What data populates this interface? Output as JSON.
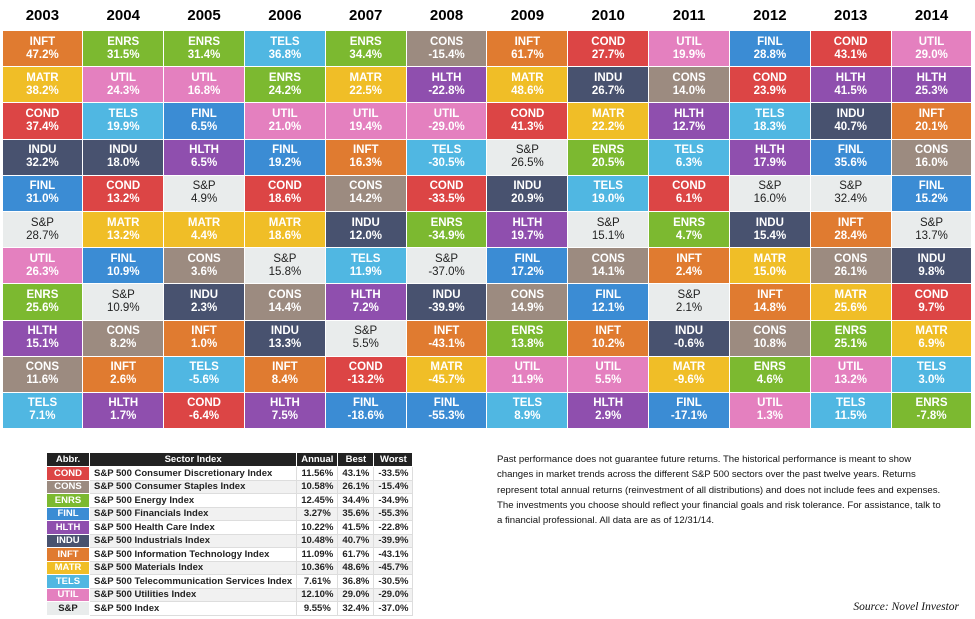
{
  "chart_data": {
    "type": "table",
    "years": [
      "2003",
      "2004",
      "2005",
      "2006",
      "2007",
      "2008",
      "2009",
      "2010",
      "2011",
      "2012",
      "2013",
      "2014"
    ],
    "columns": [
      [
        [
          "INFT",
          "47.2%"
        ],
        [
          "MATR",
          "38.2%"
        ],
        [
          "COND",
          "37.4%"
        ],
        [
          "INDU",
          "32.2%"
        ],
        [
          "FINL",
          "31.0%"
        ],
        [
          "S&P",
          "28.7%"
        ],
        [
          "UTIL",
          "26.3%"
        ],
        [
          "ENRS",
          "25.6%"
        ],
        [
          "HLTH",
          "15.1%"
        ],
        [
          "CONS",
          "11.6%"
        ],
        [
          "TELS",
          "7.1%"
        ]
      ],
      [
        [
          "ENRS",
          "31.5%"
        ],
        [
          "UTIL",
          "24.3%"
        ],
        [
          "TELS",
          "19.9%"
        ],
        [
          "INDU",
          "18.0%"
        ],
        [
          "COND",
          "13.2%"
        ],
        [
          "MATR",
          "13.2%"
        ],
        [
          "FINL",
          "10.9%"
        ],
        [
          "S&P",
          "10.9%"
        ],
        [
          "CONS",
          "8.2%"
        ],
        [
          "INFT",
          "2.6%"
        ],
        [
          "HLTH",
          "1.7%"
        ]
      ],
      [
        [
          "ENRS",
          "31.4%"
        ],
        [
          "UTIL",
          "16.8%"
        ],
        [
          "FINL",
          "6.5%"
        ],
        [
          "HLTH",
          "6.5%"
        ],
        [
          "S&P",
          "4.9%"
        ],
        [
          "MATR",
          "4.4%"
        ],
        [
          "CONS",
          "3.6%"
        ],
        [
          "INDU",
          "2.3%"
        ],
        [
          "INFT",
          "1.0%"
        ],
        [
          "TELS",
          "-5.6%"
        ],
        [
          "COND",
          "-6.4%"
        ]
      ],
      [
        [
          "TELS",
          "36.8%"
        ],
        [
          "ENRS",
          "24.2%"
        ],
        [
          "UTIL",
          "21.0%"
        ],
        [
          "FINL",
          "19.2%"
        ],
        [
          "COND",
          "18.6%"
        ],
        [
          "MATR",
          "18.6%"
        ],
        [
          "S&P",
          "15.8%"
        ],
        [
          "CONS",
          "14.4%"
        ],
        [
          "INDU",
          "13.3%"
        ],
        [
          "INFT",
          "8.4%"
        ],
        [
          "HLTH",
          "7.5%"
        ]
      ],
      [
        [
          "ENRS",
          "34.4%"
        ],
        [
          "MATR",
          "22.5%"
        ],
        [
          "UTIL",
          "19.4%"
        ],
        [
          "INFT",
          "16.3%"
        ],
        [
          "CONS",
          "14.2%"
        ],
        [
          "INDU",
          "12.0%"
        ],
        [
          "TELS",
          "11.9%"
        ],
        [
          "HLTH",
          "7.2%"
        ],
        [
          "S&P",
          "5.5%"
        ],
        [
          "COND",
          "-13.2%"
        ],
        [
          "FINL",
          "-18.6%"
        ]
      ],
      [
        [
          "CONS",
          "-15.4%"
        ],
        [
          "HLTH",
          "-22.8%"
        ],
        [
          "UTIL",
          "-29.0%"
        ],
        [
          "TELS",
          "-30.5%"
        ],
        [
          "COND",
          "-33.5%"
        ],
        [
          "ENRS",
          "-34.9%"
        ],
        [
          "S&P",
          "-37.0%"
        ],
        [
          "INDU",
          "-39.9%"
        ],
        [
          "INFT",
          "-43.1%"
        ],
        [
          "MATR",
          "-45.7%"
        ],
        [
          "FINL",
          "-55.3%"
        ]
      ],
      [
        [
          "INFT",
          "61.7%"
        ],
        [
          "MATR",
          "48.6%"
        ],
        [
          "COND",
          "41.3%"
        ],
        [
          "S&P",
          "26.5%"
        ],
        [
          "INDU",
          "20.9%"
        ],
        [
          "HLTH",
          "19.7%"
        ],
        [
          "FINL",
          "17.2%"
        ],
        [
          "CONS",
          "14.9%"
        ],
        [
          "ENRS",
          "13.8%"
        ],
        [
          "UTIL",
          "11.9%"
        ],
        [
          "TELS",
          "8.9%"
        ]
      ],
      [
        [
          "COND",
          "27.7%"
        ],
        [
          "INDU",
          "26.7%"
        ],
        [
          "MATR",
          "22.2%"
        ],
        [
          "ENRS",
          "20.5%"
        ],
        [
          "TELS",
          "19.0%"
        ],
        [
          "S&P",
          "15.1%"
        ],
        [
          "CONS",
          "14.1%"
        ],
        [
          "FINL",
          "12.1%"
        ],
        [
          "INFT",
          "10.2%"
        ],
        [
          "UTIL",
          "5.5%"
        ],
        [
          "HLTH",
          "2.9%"
        ]
      ],
      [
        [
          "UTIL",
          "19.9%"
        ],
        [
          "CONS",
          "14.0%"
        ],
        [
          "HLTH",
          "12.7%"
        ],
        [
          "TELS",
          "6.3%"
        ],
        [
          "COND",
          "6.1%"
        ],
        [
          "ENRS",
          "4.7%"
        ],
        [
          "INFT",
          "2.4%"
        ],
        [
          "S&P",
          "2.1%"
        ],
        [
          "INDU",
          "-0.6%"
        ],
        [
          "MATR",
          "-9.6%"
        ],
        [
          "FINL",
          "-17.1%"
        ]
      ],
      [
        [
          "FINL",
          "28.8%"
        ],
        [
          "COND",
          "23.9%"
        ],
        [
          "TELS",
          "18.3%"
        ],
        [
          "HLTH",
          "17.9%"
        ],
        [
          "S&P",
          "16.0%"
        ],
        [
          "INDU",
          "15.4%"
        ],
        [
          "MATR",
          "15.0%"
        ],
        [
          "INFT",
          "14.8%"
        ],
        [
          "CONS",
          "10.8%"
        ],
        [
          "ENRS",
          "4.6%"
        ],
        [
          "UTIL",
          "1.3%"
        ]
      ],
      [
        [
          "COND",
          "43.1%"
        ],
        [
          "HLTH",
          "41.5%"
        ],
        [
          "INDU",
          "40.7%"
        ],
        [
          "FINL",
          "35.6%"
        ],
        [
          "S&P",
          "32.4%"
        ],
        [
          "INFT",
          "28.4%"
        ],
        [
          "CONS",
          "26.1%"
        ],
        [
          "MATR",
          "25.6%"
        ],
        [
          "ENRS",
          "25.1%"
        ],
        [
          "UTIL",
          "13.2%"
        ],
        [
          "TELS",
          "11.5%"
        ]
      ],
      [
        [
          "UTIL",
          "29.0%"
        ],
        [
          "HLTH",
          "25.3%"
        ],
        [
          "INFT",
          "20.1%"
        ],
        [
          "CONS",
          "16.0%"
        ],
        [
          "FINL",
          "15.2%"
        ],
        [
          "S&P",
          "13.7%"
        ],
        [
          "INDU",
          "9.8%"
        ],
        [
          "COND",
          "9.7%"
        ],
        [
          "MATR",
          "6.9%"
        ],
        [
          "TELS",
          "3.0%"
        ],
        [
          "ENRS",
          "-7.8%"
        ]
      ]
    ],
    "colors": {
      "COND": "#dc4545",
      "CONS": "#9c8b80",
      "ENRS": "#7cb930",
      "FINL": "#3b8cd4",
      "HLTH": "#8f4fae",
      "INDU": "#48526f",
      "INFT": "#e07b30",
      "MATR": "#f0be27",
      "TELS": "#50b7e2",
      "UTIL": "#e480bf",
      "S&P": "#e9ecec"
    }
  },
  "legend": {
    "headers": [
      "Abbr.",
      "Sector Index",
      "Annual",
      "Best",
      "Worst"
    ],
    "rows": [
      [
        "COND",
        "S&P 500 Consumer Discretionary Index",
        "11.56%",
        "43.1%",
        "-33.5%"
      ],
      [
        "CONS",
        "S&P 500 Consumer Staples Index",
        "10.58%",
        "26.1%",
        "-15.4%"
      ],
      [
        "ENRS",
        "S&P 500 Energy Index",
        "12.45%",
        "34.4%",
        "-34.9%"
      ],
      [
        "FINL",
        "S&P 500 Financials Index",
        "3.27%",
        "35.6%",
        "-55.3%"
      ],
      [
        "HLTH",
        "S&P 500 Health Care Index",
        "10.22%",
        "41.5%",
        "-22.8%"
      ],
      [
        "INDU",
        "S&P 500 Industrials Index",
        "10.48%",
        "40.7%",
        "-39.9%"
      ],
      [
        "INFT",
        "S&P 500 Information Technology Index",
        "11.09%",
        "61.7%",
        "-43.1%"
      ],
      [
        "MATR",
        "S&P 500 Materials Index",
        "10.36%",
        "48.6%",
        "-45.7%"
      ],
      [
        "TELS",
        "S&P 500 Telecommunication Services Index",
        "7.61%",
        "36.8%",
        "-30.5%"
      ],
      [
        "UTIL",
        "S&P 500 Utilities Index",
        "12.10%",
        "29.0%",
        "-29.0%"
      ],
      [
        "S&P",
        "S&P 500 Index",
        "9.55%",
        "32.4%",
        "-37.0%"
      ]
    ]
  },
  "note": "Past performance does not guarantee future returns. The historical performance is meant to show changes in market trends across the different S&P 500 sectors over the past twelve years. Returns represent total annual returns (reinvestment of all distributions) and does not include fees and expenses. The investments you choose should reflect your financial goals and risk tolerance. For assistance, talk to a financial professional. All data are as of 12/31/14.",
  "source": "Source: Novel Investor"
}
